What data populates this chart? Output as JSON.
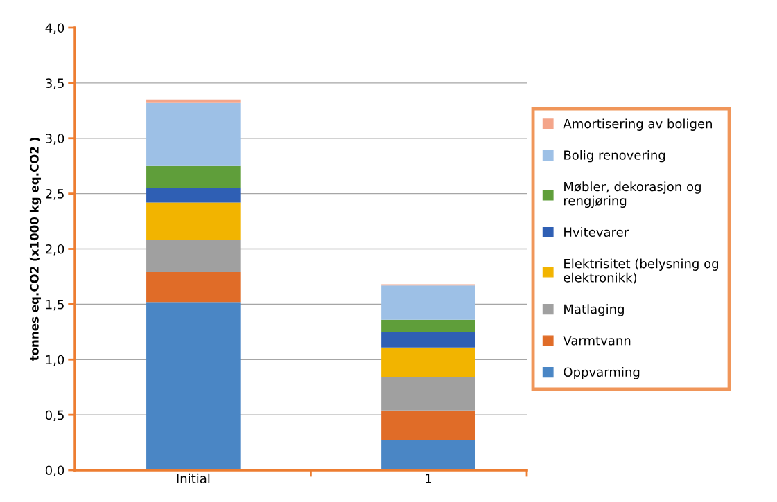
{
  "chart_data": {
    "type": "bar",
    "stacked": true,
    "ylabel": "tonnes eq.CO2 (x1000 kg eq.CO2 )",
    "categories": [
      "Initial",
      "1"
    ],
    "series": [
      {
        "name": "Oppvarming",
        "color": "#4a86c5",
        "values": [
          1.52,
          0.27
        ]
      },
      {
        "name": "Varmtvann",
        "color": "#e06c28",
        "values": [
          0.27,
          0.27
        ]
      },
      {
        "name": "Matlaging",
        "color": "#a0a0a0",
        "values": [
          0.29,
          0.3
        ]
      },
      {
        "name": "Elektrisitet (belysning og\nelektronikk)",
        "color": "#f2b400",
        "values": [
          0.34,
          0.27
        ]
      },
      {
        "name": "Hvitevarer",
        "color": "#2f5fb4",
        "values": [
          0.13,
          0.14
        ]
      },
      {
        "name": "Møbler, dekorasjon og\nrengjøring",
        "color": "#5f9e3a",
        "values": [
          0.2,
          0.11
        ]
      },
      {
        "name": "Bolig renovering",
        "color": "#9dc0e6",
        "values": [
          0.57,
          0.31
        ]
      },
      {
        "name": "Amortisering av boligen",
        "color": "#f4a58a",
        "values": [
          0.03,
          0.01
        ]
      }
    ],
    "ylim": [
      0,
      4
    ],
    "yticks": [
      {
        "value": 0,
        "label": "0,0"
      },
      {
        "value": 0.5,
        "label": "0,5"
      },
      {
        "value": 1,
        "label": "1,0"
      },
      {
        "value": 1.5,
        "label": "1,5"
      },
      {
        "value": 2,
        "label": "2,0"
      },
      {
        "value": 2.5,
        "label": "2,5"
      },
      {
        "value": 3,
        "label": "3,0"
      },
      {
        "value": 3.5,
        "label": "3,5"
      },
      {
        "value": 4,
        "label": "4,0"
      }
    ],
    "grid": "y",
    "legend": "right"
  }
}
